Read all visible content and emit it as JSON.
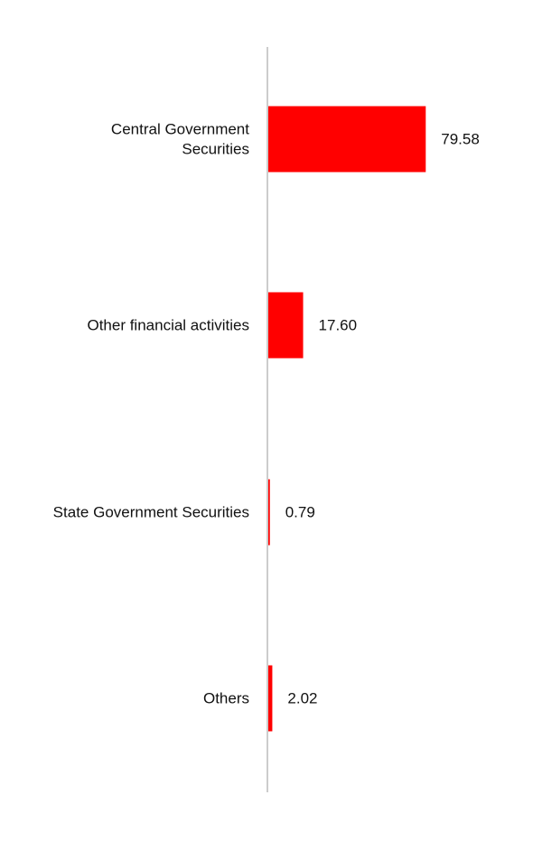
{
  "chart_data": {
    "type": "bar",
    "orientation": "horizontal",
    "categories": [
      [
        "Central Government",
        "Securities"
      ],
      [
        "Other financial activities"
      ],
      [
        "State Government Securities"
      ],
      [
        "Others"
      ]
    ],
    "values": [
      79.58,
      17.6,
      0.79,
      2.02
    ],
    "value_labels": [
      "79.58",
      "17.60",
      "0.79",
      "2.02"
    ],
    "title": "",
    "xlabel": "",
    "ylabel": "",
    "xlim": [
      0,
      100
    ],
    "grid": false,
    "legend": "none",
    "bar_color": "#ff0000",
    "axis_color": "#cccccc"
  }
}
